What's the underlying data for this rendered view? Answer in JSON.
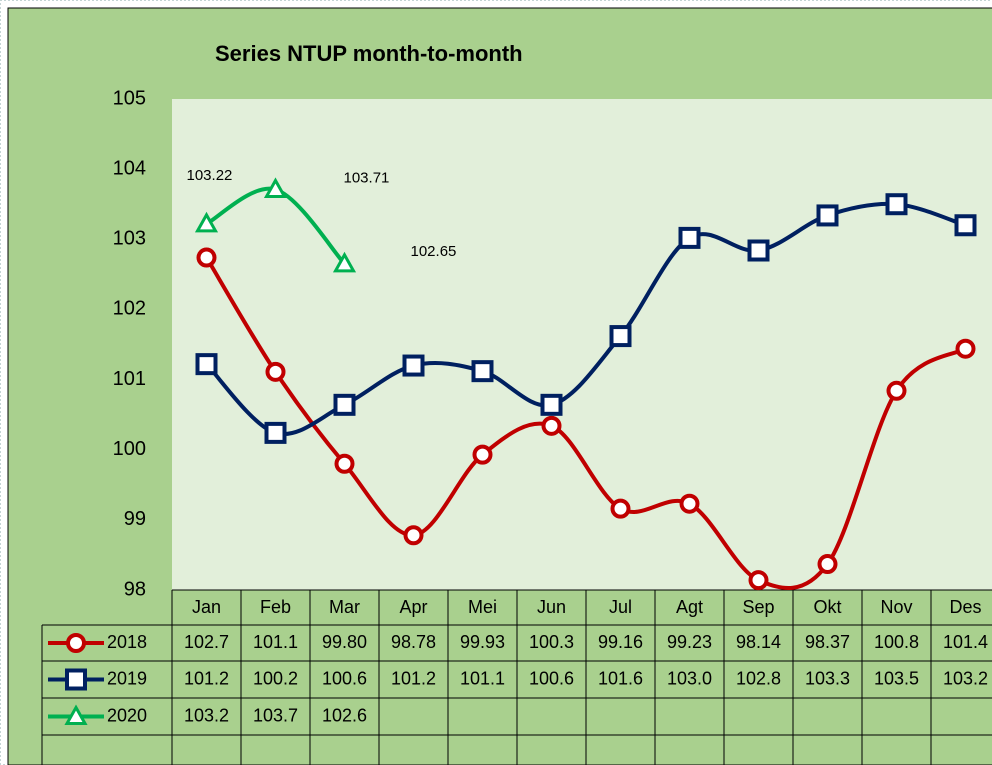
{
  "chart_data": {
    "type": "line",
    "title": "Series NTUP month-to-month",
    "categories": [
      "Jan",
      "Feb",
      "Mar",
      "Apr",
      "Mei",
      "Jun",
      "Jul",
      "Agt",
      "Sep",
      "Okt",
      "Nov",
      "Des"
    ],
    "ylim": [
      98,
      105
    ],
    "yticks": [
      98,
      99,
      100,
      101,
      102,
      103,
      104,
      105
    ],
    "series": [
      {
        "name": "2018",
        "color": "#c00000",
        "marker": "circle",
        "values": [
          102.74,
          101.11,
          99.8,
          98.78,
          99.93,
          100.34,
          99.16,
          99.23,
          98.14,
          98.37,
          100.84,
          101.44
        ],
        "value_labels": [
          "102.7",
          "101.1",
          "99.80",
          "98.78",
          "99.93",
          "100.3",
          "99.16",
          "99.23",
          "98.14",
          "98.37",
          "100.8",
          "101.4"
        ]
      },
      {
        "name": "2019",
        "color": "#002060",
        "marker": "square",
        "values": [
          101.22,
          100.24,
          100.64,
          101.2,
          101.12,
          100.64,
          101.62,
          103.02,
          102.84,
          103.34,
          103.5,
          103.2
        ],
        "value_labels": [
          "101.2",
          "100.2",
          "100.6",
          "101.2",
          "101.1",
          "100.6",
          "101.6",
          "103.0",
          "102.8",
          "103.3",
          "103.5",
          "103.2"
        ]
      },
      {
        "name": "2020",
        "color": "#00b050",
        "marker": "triangle",
        "data_labels": true,
        "values": [
          103.22,
          103.71,
          102.65,
          null,
          null,
          null,
          null,
          null,
          null,
          null,
          null,
          null
        ],
        "value_labels": [
          "103.2",
          "103.7",
          "102.6",
          null,
          null,
          null,
          null,
          null,
          null,
          null,
          null,
          null
        ]
      }
    ]
  }
}
